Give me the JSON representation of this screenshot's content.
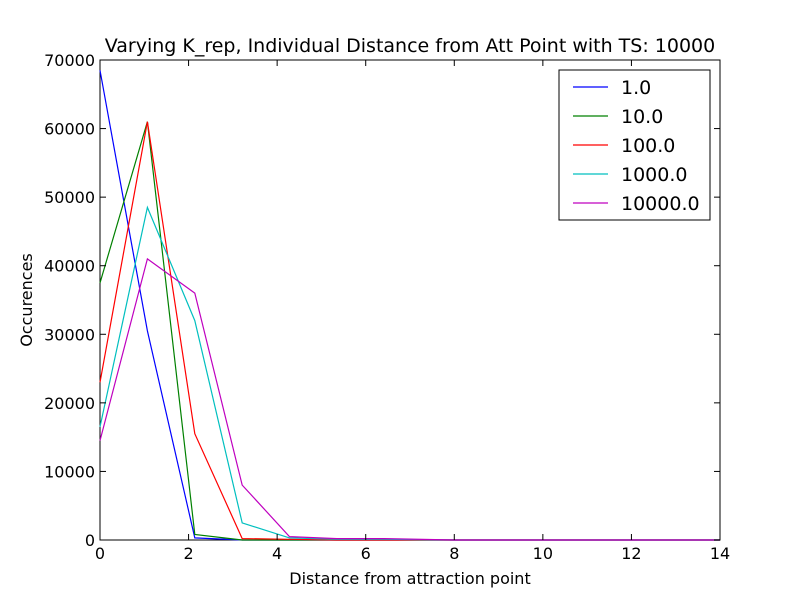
{
  "chart_data": {
    "type": "line",
    "title": "Varying K_rep, Individual Distance from Att Point with TS: 10000",
    "xlabel": "Distance from attraction point",
    "ylabel": "Occurences",
    "xlim": [
      0,
      14
    ],
    "ylim": [
      0,
      70000
    ],
    "xticks": [
      0,
      2,
      4,
      6,
      8,
      10,
      12,
      14
    ],
    "yticks": [
      0,
      10000,
      20000,
      30000,
      40000,
      50000,
      60000,
      70000
    ],
    "grid": false,
    "legend_position": "top-right",
    "series": [
      {
        "name": "1.0",
        "color": "#0000ff",
        "x": [
          0,
          1.07,
          2.14,
          3.21,
          4.28,
          5.35,
          6.42,
          14
        ],
        "y": [
          68500,
          30500,
          300,
          0,
          0,
          0,
          0,
          0
        ]
      },
      {
        "name": "10.0",
        "color": "#008000",
        "x": [
          0,
          1.07,
          2.14,
          3.21,
          4.28,
          5.35,
          6.42,
          14
        ],
        "y": [
          37500,
          61000,
          800,
          0,
          0,
          0,
          0,
          0
        ]
      },
      {
        "name": "100.0",
        "color": "#ff0000",
        "x": [
          0,
          1.07,
          2.14,
          3.21,
          4.28,
          5.35,
          6.42,
          14
        ],
        "y": [
          23000,
          61000,
          15500,
          200,
          100,
          0,
          0,
          0
        ]
      },
      {
        "name": "1000.0",
        "color": "#00bfbf",
        "x": [
          0,
          1.07,
          2.14,
          3.21,
          4.28,
          5.35,
          6.42,
          8,
          14
        ],
        "y": [
          16500,
          48500,
          32000,
          2500,
          300,
          100,
          100,
          0,
          0
        ]
      },
      {
        "name": "10000.0",
        "color": "#bf00bf",
        "x": [
          0,
          1.07,
          2.14,
          3.21,
          4.28,
          5.35,
          6.42,
          8,
          14
        ],
        "y": [
          14500,
          41000,
          36000,
          8000,
          500,
          200,
          200,
          0,
          0
        ]
      }
    ]
  }
}
